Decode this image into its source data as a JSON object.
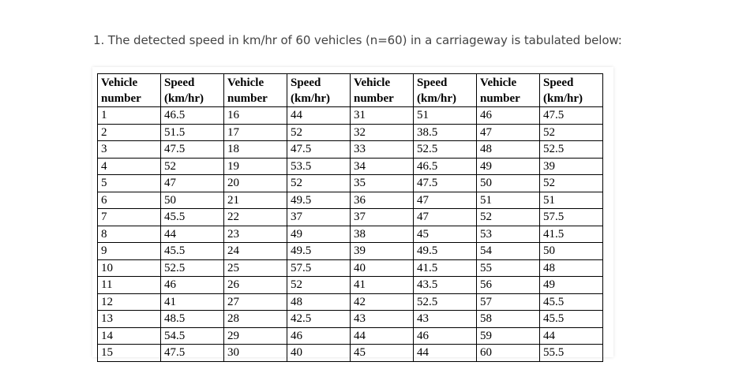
{
  "question": {
    "text": "1. The detected speed in km/hr of 60 vehicles (n=60) in a carriageway is tabulated below:"
  },
  "table": {
    "headers": [
      {
        "line1": "Vehicle",
        "line2": "number"
      },
      {
        "line1": "Speed",
        "line2": "(km/hr)"
      },
      {
        "line1": "Vehicle",
        "line2": "number"
      },
      {
        "line1": "Speed",
        "line2": "(km/hr)"
      },
      {
        "line1": "Vehicle",
        "line2": "number"
      },
      {
        "line1": "Speed",
        "line2": "(km/hr)"
      },
      {
        "line1": "Vehicle",
        "line2": "number"
      },
      {
        "line1": "Speed",
        "line2": "(km/hr)"
      }
    ],
    "rows": [
      [
        "1",
        "46.5",
        "16",
        "44",
        "31",
        "51",
        "46",
        "47.5"
      ],
      [
        "2",
        "51.5",
        "17",
        "52",
        "32",
        "38.5",
        "47",
        "52"
      ],
      [
        "3",
        "47.5",
        "18",
        "47.5",
        "33",
        "52.5",
        "48",
        "52.5"
      ],
      [
        "4",
        "52",
        "19",
        "53.5",
        "34",
        "46.5",
        "49",
        "39"
      ],
      [
        "5",
        "47",
        "20",
        "52",
        "35",
        "47.5",
        "50",
        "52"
      ],
      [
        "6",
        "50",
        "21",
        "49.5",
        "36",
        "47",
        "51",
        "51"
      ],
      [
        "7",
        "45.5",
        "22",
        "37",
        "37",
        "47",
        "52",
        "57.5"
      ],
      [
        "8",
        "44",
        "23",
        "49",
        "38",
        "45",
        "53",
        "41.5"
      ],
      [
        "9",
        "45.5",
        "24",
        "49.5",
        "39",
        "49.5",
        "54",
        "50"
      ],
      [
        "10",
        "52.5",
        "25",
        "57.5",
        "40",
        "41.5",
        "55",
        "48"
      ],
      [
        "11",
        "46",
        "26",
        "52",
        "41",
        "43.5",
        "56",
        "49"
      ],
      [
        "12",
        "41",
        "27",
        "48",
        "42",
        "52.5",
        "57",
        "45.5"
      ],
      [
        "13",
        "48.5",
        "28",
        "42.5",
        "43",
        "43",
        "58",
        "45.5"
      ],
      [
        "14",
        "54.5",
        "29",
        "46",
        "44",
        "46",
        "59",
        "44"
      ],
      [
        "15",
        "47.5",
        "30",
        "40",
        "45",
        "44",
        "60",
        "55.5"
      ]
    ]
  }
}
